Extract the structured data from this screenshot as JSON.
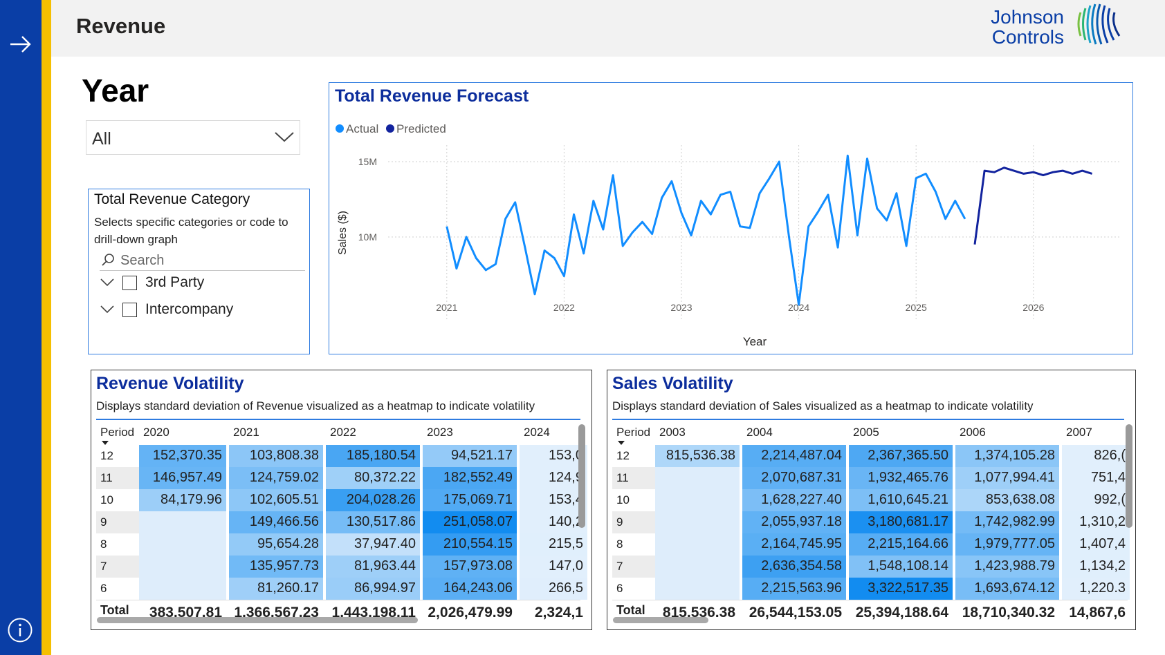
{
  "header": {
    "title": "Revenue",
    "logo_line1": "Johnson",
    "logo_line2": "Controls"
  },
  "year_slicer": {
    "title": "Year",
    "selected": "All"
  },
  "category_slicer": {
    "title": "Total Revenue Category",
    "description": "Selects specific categories or code to drill-down graph",
    "search_placeholder": "Search",
    "items": [
      {
        "label": "3rd Party"
      },
      {
        "label": "Intercompany"
      }
    ]
  },
  "forecast": {
    "title": "Total Revenue Forecast",
    "chart_data": {
      "type": "line",
      "title": "Total Revenue Forecast",
      "xlabel": "Year",
      "ylabel": "Sales ($)",
      "y_ticks": [
        {
          "value": 10000000,
          "label": "10M"
        },
        {
          "value": 15000000,
          "label": "15M"
        }
      ],
      "ylim": [
        4400000,
        16100000
      ],
      "x_ticks": [
        {
          "value": 2021,
          "label": "2021"
        },
        {
          "value": 2022,
          "label": "2022"
        },
        {
          "value": 2023,
          "label": "2023"
        },
        {
          "value": 2024,
          "label": "2024"
        },
        {
          "value": 2025,
          "label": "2025"
        },
        {
          "value": 2026,
          "label": "2026"
        }
      ],
      "xlim": [
        2020.5,
        2026.75
      ],
      "grid": true,
      "legend": "top-left",
      "series": [
        {
          "name": "Actual",
          "color": "#118dff",
          "x": [
            2021.0,
            2021.083,
            2021.167,
            2021.25,
            2021.333,
            2021.417,
            2021.5,
            2021.583,
            2021.667,
            2021.75,
            2021.833,
            2021.917,
            2022.0,
            2022.083,
            2022.167,
            2022.25,
            2022.333,
            2022.417,
            2022.5,
            2022.583,
            2022.667,
            2022.75,
            2022.833,
            2022.917,
            2023.0,
            2023.083,
            2023.167,
            2023.25,
            2023.333,
            2023.417,
            2023.5,
            2023.583,
            2023.667,
            2023.75,
            2023.833,
            2023.917,
            2024.0,
            2024.083,
            2024.167,
            2024.25,
            2024.333,
            2024.417,
            2024.5,
            2024.583,
            2024.667,
            2024.75,
            2024.833,
            2024.917,
            2025.0,
            2025.083,
            2025.167,
            2025.25,
            2025.333,
            2025.417
          ],
          "values": [
            10700000,
            7900000,
            10000000,
            8600000,
            7800000,
            8200000,
            11200000,
            12300000,
            9300000,
            6200000,
            9100000,
            8600000,
            7400000,
            11500000,
            8900000,
            12400000,
            10500000,
            14100000,
            9400000,
            10300000,
            11000000,
            10200000,
            12600000,
            13700000,
            11600000,
            10100000,
            12400000,
            11500000,
            12800000,
            13000000,
            10700000,
            10600000,
            12900000,
            13900000,
            15000000,
            10000000,
            5500000,
            10700000,
            11700000,
            12800000,
            9300000,
            15400000,
            10100000,
            15200000,
            11900000,
            11100000,
            12900000,
            9400000,
            13900000,
            14200000,
            13000000,
            11200000,
            12400000,
            11200000
          ]
        },
        {
          "name": "Predicted",
          "color": "#12239e",
          "x": [
            2025.5,
            2025.583,
            2025.667,
            2025.75,
            2025.833,
            2025.917,
            2026.0,
            2026.083,
            2026.167,
            2026.25,
            2026.333,
            2026.417,
            2026.5
          ],
          "values": [
            9500000,
            14400000,
            14300000,
            14600000,
            14400000,
            14200000,
            14300000,
            14100000,
            14300000,
            14400000,
            14200000,
            14400000,
            14200000
          ]
        }
      ]
    }
  },
  "revenue_volatility": {
    "title": "Revenue Volatility",
    "description": "Displays standard deviation of Revenue visualized as a heatmap to indicate volatility",
    "period_label": "Period",
    "total_label": "Total",
    "columns": [
      "2020",
      "2021",
      "2022",
      "2023",
      "2024"
    ],
    "rows": [
      {
        "period": "12",
        "values": [
          "152,370.35",
          "103,808.38",
          "185,180.54",
          "94,521.17",
          "153,0"
        ]
      },
      {
        "period": "11",
        "values": [
          "146,957.49",
          "124,759.02",
          "80,372.22",
          "182,552.49",
          "124,9"
        ]
      },
      {
        "period": "10",
        "values": [
          "84,179.96",
          "102,605.51",
          "204,028.26",
          "175,069.71",
          "153,4"
        ]
      },
      {
        "period": "9",
        "values": [
          "",
          "149,466.56",
          "130,517.86",
          "251,058.07",
          "140,2"
        ]
      },
      {
        "period": "8",
        "values": [
          "",
          "95,654.28",
          "37,947.40",
          "210,554.15",
          "215,5"
        ]
      },
      {
        "period": "7",
        "values": [
          "",
          "135,957.73",
          "81,963.44",
          "157,973.08",
          "147,0"
        ]
      },
      {
        "period": "6",
        "values": [
          "",
          "81,260.17",
          "86,994.97",
          "164,243.06",
          "266,5"
        ]
      }
    ],
    "totals": [
      "383,507.81",
      "1,366,567.23",
      "1,443,198.11",
      "2,026,479.99",
      "2,324,1"
    ]
  },
  "sales_volatility": {
    "title": "Sales Volatility",
    "description": "Displays standard deviation of Sales visualized as a heatmap to indicate volatility",
    "period_label": "Period",
    "total_label": "Total",
    "columns": [
      "2003",
      "2004",
      "2005",
      "2006",
      "2007"
    ],
    "rows": [
      {
        "period": "12",
        "values": [
          "815,536.38",
          "2,214,487.04",
          "2,367,365.50",
          "1,374,105.28",
          "826,("
        ]
      },
      {
        "period": "11",
        "values": [
          "",
          "2,070,687.31",
          "1,932,465.76",
          "1,077,994.41",
          "751,4"
        ]
      },
      {
        "period": "10",
        "values": [
          "",
          "1,628,227.40",
          "1,610,645.21",
          "853,638.08",
          "992,("
        ]
      },
      {
        "period": "9",
        "values": [
          "",
          "2,055,937.18",
          "3,180,681.17",
          "1,742,982.99",
          "1,310,2"
        ]
      },
      {
        "period": "8",
        "values": [
          "",
          "2,164,745.95",
          "2,215,164.66",
          "1,979,777.05",
          "1,407,4"
        ]
      },
      {
        "period": "7",
        "values": [
          "",
          "2,636,354.58",
          "1,548,108.14",
          "1,423,988.79",
          "1,134,2"
        ]
      },
      {
        "period": "6",
        "values": [
          "",
          "2,215,563.96",
          "3,322,517.35",
          "1,693,674.12",
          "1,220.3"
        ]
      }
    ],
    "totals": [
      "815,536.38",
      "26,544,153.05",
      "25,394,188.64",
      "18,710,340.32",
      "14,867,6"
    ]
  }
}
